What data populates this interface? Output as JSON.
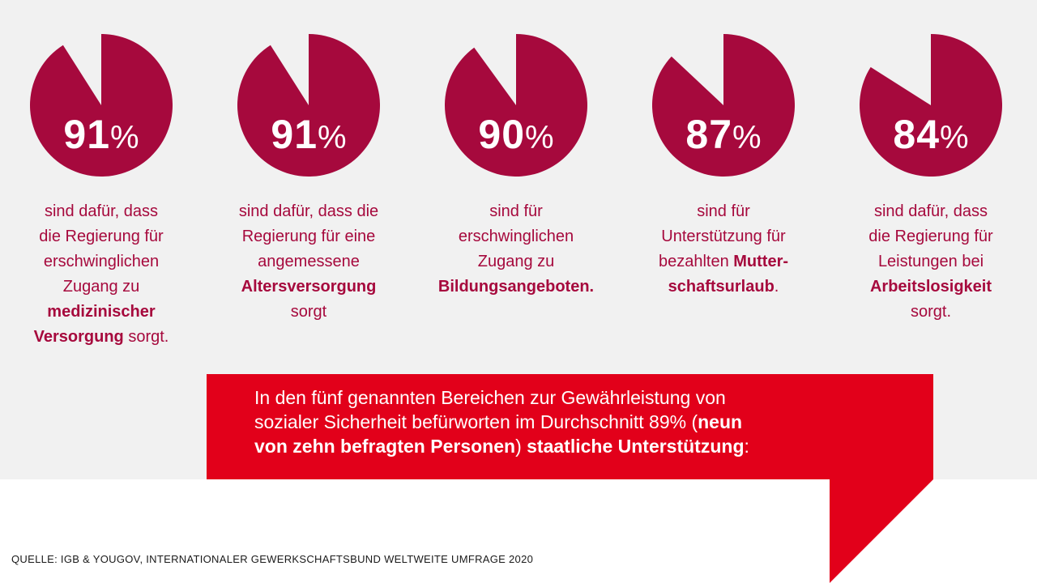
{
  "colors": {
    "pie": "#a6093d",
    "accent": "#e2001a",
    "text_dark": "#1a1a1a",
    "background": "#f1f1f1"
  },
  "chart_data": {
    "type": "pie",
    "unit": "%",
    "items": [
      {
        "value": 91,
        "value_label": "91",
        "unit_label": "%",
        "desc": {
          "l1": "sind dafür, dass",
          "l2": "die Regierung für",
          "l3": "erschwinglichen",
          "l4": "Zugang zu",
          "l5b": "medizinischer",
          "l6b": "Versorgung",
          "l6": " sorgt."
        }
      },
      {
        "value": 91,
        "value_label": "91",
        "unit_label": "%",
        "desc": {
          "l1": "sind dafür, dass die",
          "l2": "Regierung für eine",
          "l3": "angemessene",
          "l4b": "Altersversorgung",
          "l5": "sorgt"
        }
      },
      {
        "value": 90,
        "value_label": "90",
        "unit_label": "%",
        "desc": {
          "l1": "sind für",
          "l2": "erschwinglichen",
          "l3": "Zugang zu",
          "l4b": "Bildungsangeboten."
        }
      },
      {
        "value": 87,
        "value_label": "87",
        "unit_label": "%",
        "desc": {
          "l1": "sind für",
          "l2": "Unterstützung für",
          "l3": "bezahlten ",
          "l3b": "Mutter-",
          "l4b": "schaftsurlaub",
          "l4": "."
        }
      },
      {
        "value": 84,
        "value_label": "84",
        "unit_label": "%",
        "desc": {
          "l1": "sind dafür, dass",
          "l2": "die Regierung für",
          "l3": "Leistungen bei",
          "l4b": "Arbeitslosigkeit",
          "l5": "sorgt."
        }
      }
    ]
  },
  "summary": {
    "line1": "In den fünf genannten Bereichen zur Gewährleistung von",
    "line2": "sozialer Sicherheit befürworten im Durchschnitt 89% (",
    "line2_bold": "neun",
    "line3_bold": "von zehn befragten Personen",
    "line3_mid": ") ",
    "line3_bold2": "staatliche Unterstützung",
    "line3_end": ":"
  },
  "source": "QUELLE: IGB & YOUGOV, INTERNATIONALER GEWERKSCHAFTSBUND WELTWEITE UMFRAGE 2020"
}
